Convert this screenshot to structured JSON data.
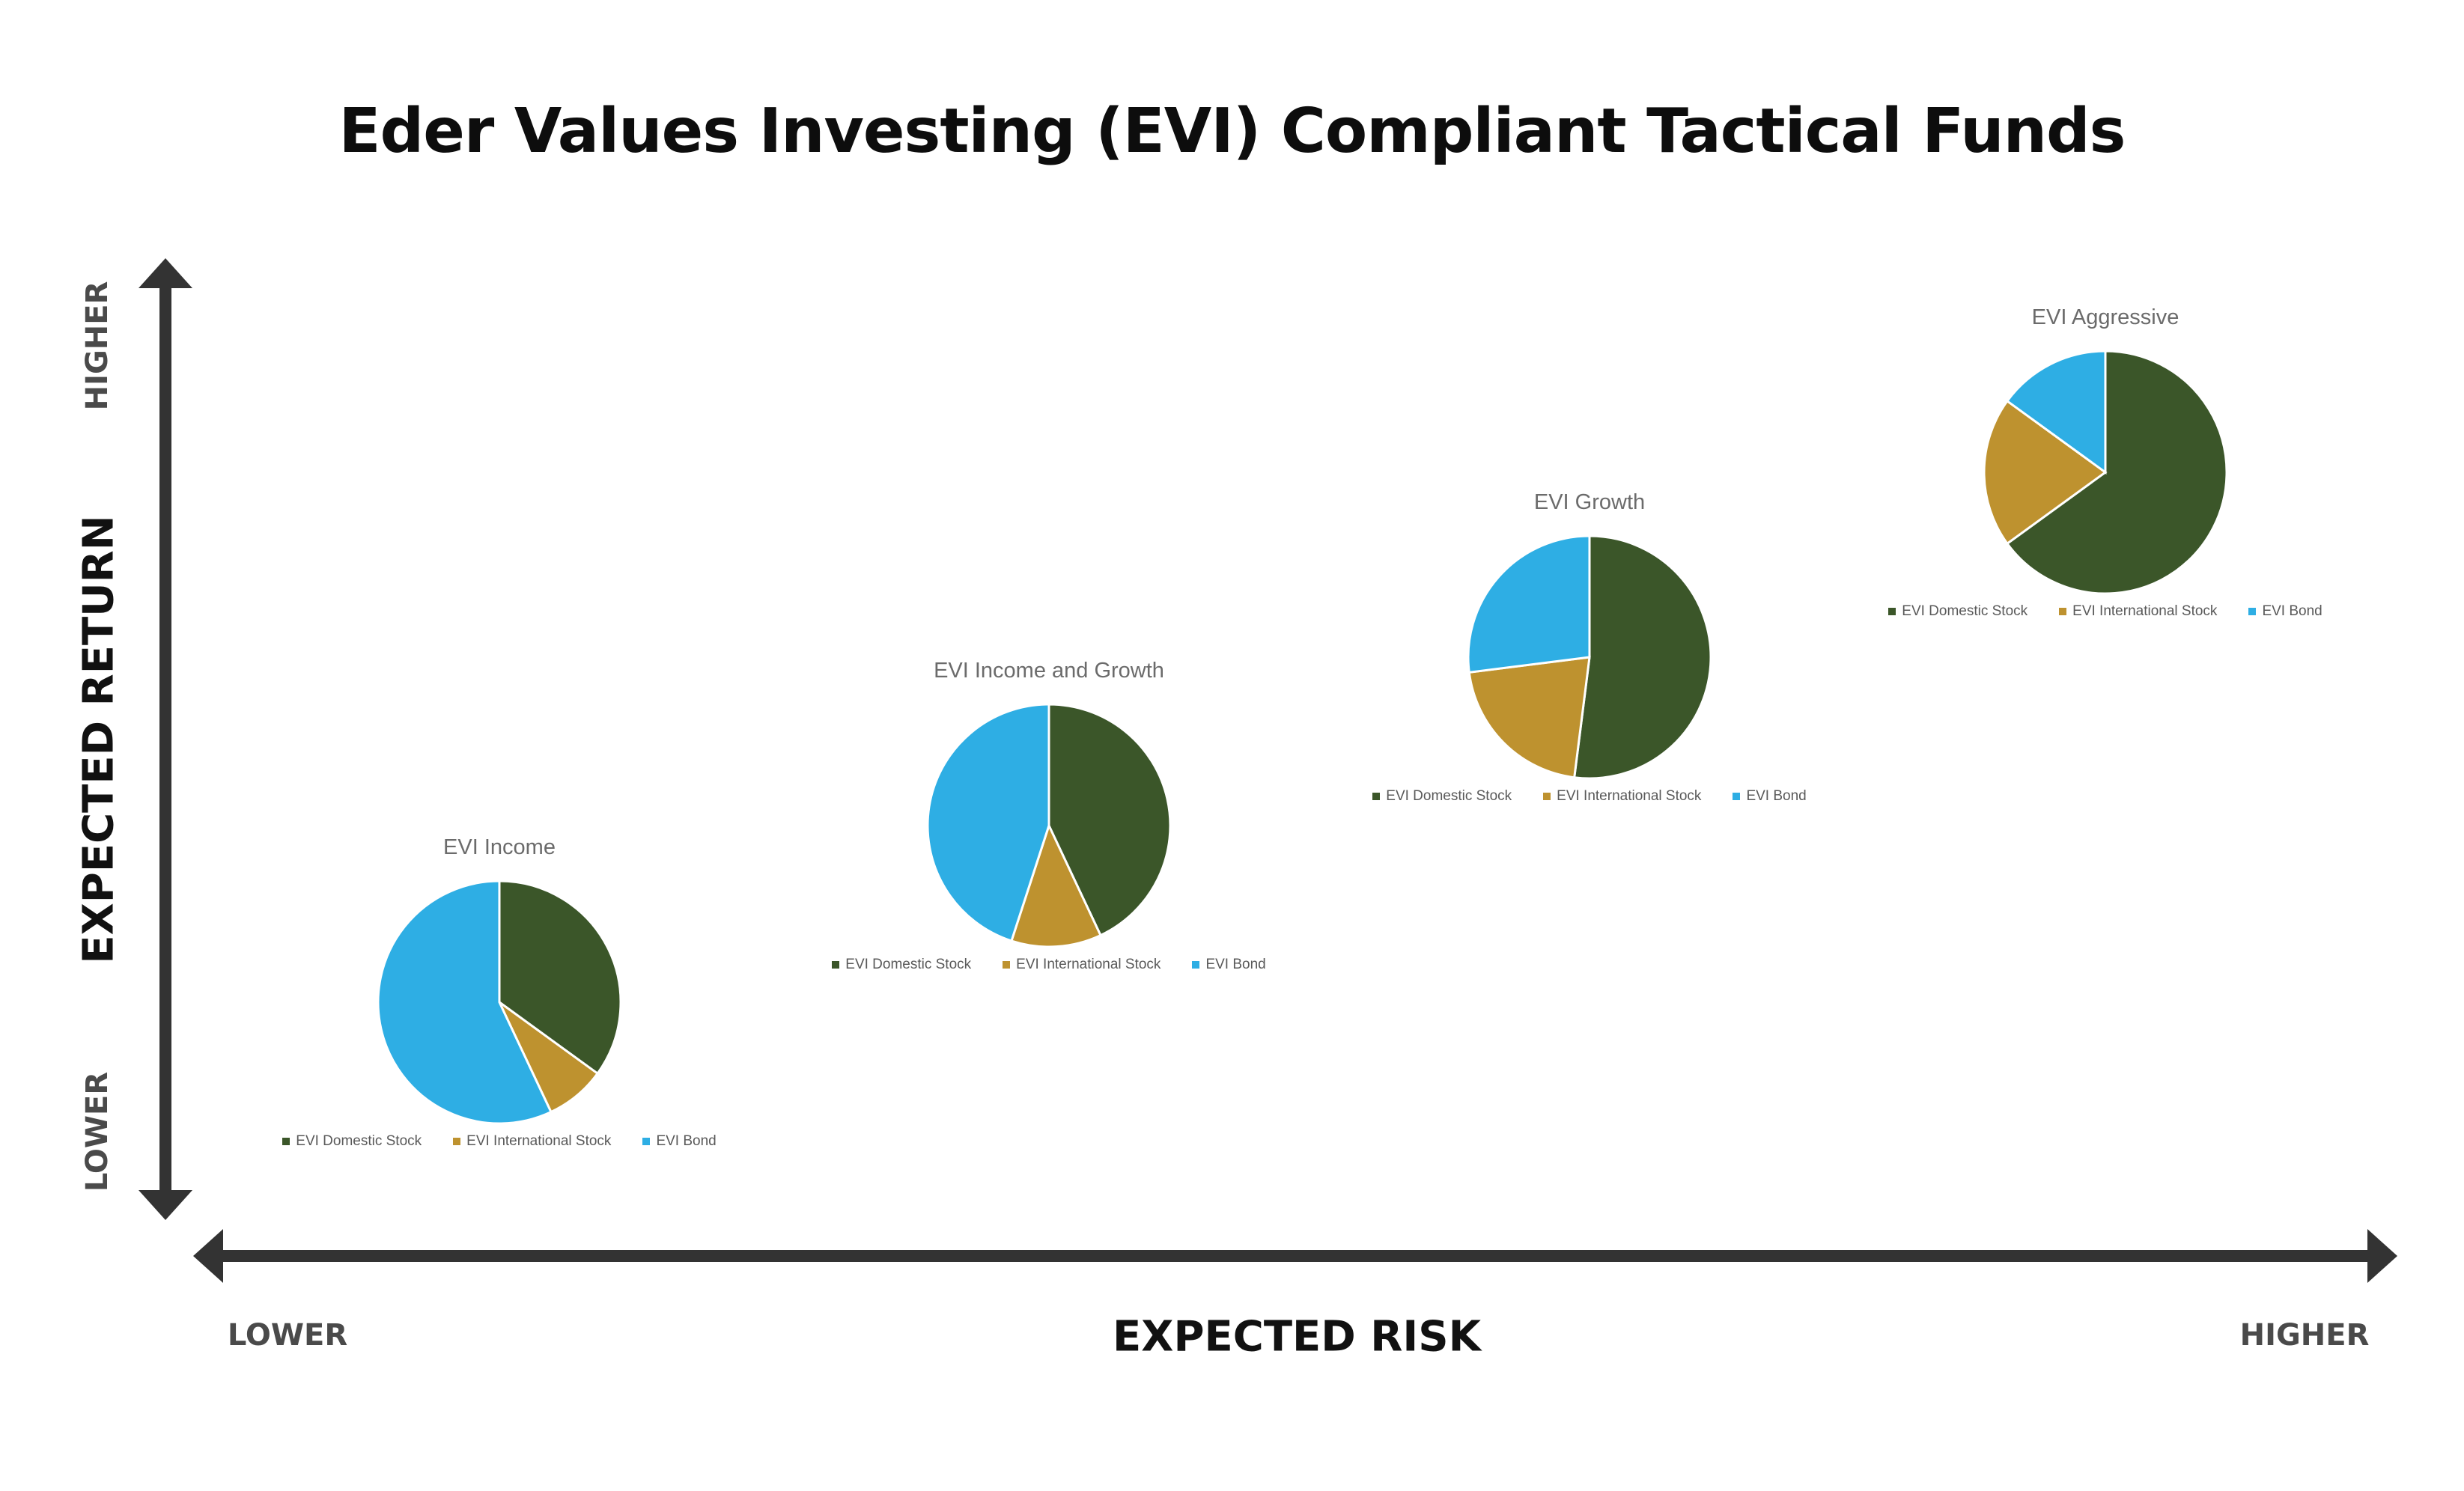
{
  "title": "Eder Values Investing (EVI) Compliant Tactical Funds",
  "axes": {
    "y_title": "EXPECTED RETURN",
    "y_low": "LOWER",
    "y_high": "HIGHER",
    "x_title": "EXPECTED RISK",
    "x_low": "LOWER",
    "x_high": "HIGHER",
    "axis_color": "#333333"
  },
  "colors": {
    "EVI Domestic Stock": "#3b5629",
    "EVI International Stock": "#be922f",
    "EVI Bond": "#2eaee4"
  },
  "chart_data": [
    {
      "type": "pie",
      "title": "EVI Income",
      "labels": [
        "EVI Domestic Stock",
        "EVI International Stock",
        "EVI Bond"
      ],
      "values": [
        35,
        8,
        57
      ],
      "risk_position": "lowest",
      "return_position": "lowest"
    },
    {
      "type": "pie",
      "title": "EVI Income and Growth",
      "labels": [
        "EVI Domestic Stock",
        "EVI International Stock",
        "EVI Bond"
      ],
      "values": [
        43,
        12,
        45
      ],
      "risk_position": "low-mid",
      "return_position": "low-mid"
    },
    {
      "type": "pie",
      "title": "EVI Growth",
      "labels": [
        "EVI Domestic Stock",
        "EVI International Stock",
        "EVI Bond"
      ],
      "values": [
        52,
        21,
        27
      ],
      "risk_position": "high-mid",
      "return_position": "high-mid"
    },
    {
      "type": "pie",
      "title": "EVI Aggressive",
      "labels": [
        "EVI Domestic Stock",
        "EVI International Stock",
        "EVI Bond"
      ],
      "values": [
        65,
        20,
        15
      ],
      "risk_position": "highest",
      "return_position": "highest"
    }
  ]
}
